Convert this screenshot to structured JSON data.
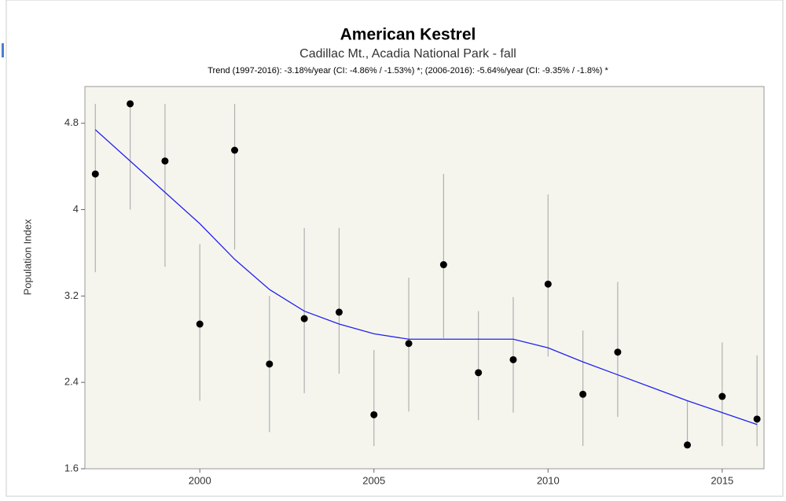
{
  "chart_data": {
    "type": "scatter",
    "title": "American Kestrel",
    "subtitle": "Cadillac Mt., Acadia National Park - fall",
    "annotation": "Trend (1997-2016): -3.18%/year (CI: -4.86% / -1.53%) *; (2006-2016): -5.64%/year (CI: -9.35% / -1.8%) *",
    "ylabel": "Population Index",
    "x": [
      1997,
      1998,
      1999,
      2000,
      2001,
      2002,
      2003,
      2004,
      2005,
      2006,
      2007,
      2008,
      2009,
      2010,
      2011,
      2012,
      2013,
      2014,
      2015,
      2016
    ],
    "points": {
      "color": "#000000",
      "values": [
        4.33,
        4.98,
        4.45,
        2.94,
        4.55,
        2.57,
        2.99,
        3.05,
        2.1,
        2.76,
        3.49,
        2.49,
        2.61,
        3.31,
        2.29,
        2.68,
        null,
        1.82,
        2.27,
        2.06
      ],
      "upper": [
        4.98,
        4.98,
        4.98,
        3.68,
        4.98,
        3.2,
        3.83,
        3.83,
        2.7,
        3.37,
        4.33,
        3.06,
        3.19,
        4.14,
        2.88,
        3.33,
        null,
        2.23,
        2.77,
        2.65
      ],
      "lower": [
        3.42,
        4.0,
        3.47,
        2.23,
        3.63,
        1.94,
        2.3,
        2.48,
        1.81,
        2.13,
        2.81,
        2.05,
        2.12,
        2.64,
        1.81,
        2.08,
        null,
        1.82,
        1.81,
        1.81
      ],
      "error_color": "#b0b0b0"
    },
    "trend": {
      "color": "#2222ee",
      "values": [
        4.74,
        4.45,
        4.16,
        3.87,
        3.54,
        3.26,
        3.06,
        2.94,
        2.85,
        2.8,
        2.8,
        2.8,
        2.8,
        2.72,
        2.59,
        2.47,
        2.35,
        2.23,
        2.12,
        2.01
      ]
    },
    "xlim": [
      1996.7,
      2016.2
    ],
    "xticks": [
      2000,
      2005,
      2010,
      2015
    ],
    "ylim": [
      1.6,
      5.14
    ],
    "yticks": [
      1.6,
      2.4,
      3.2,
      4,
      4.8
    ],
    "background": "#f5f5ee"
  }
}
